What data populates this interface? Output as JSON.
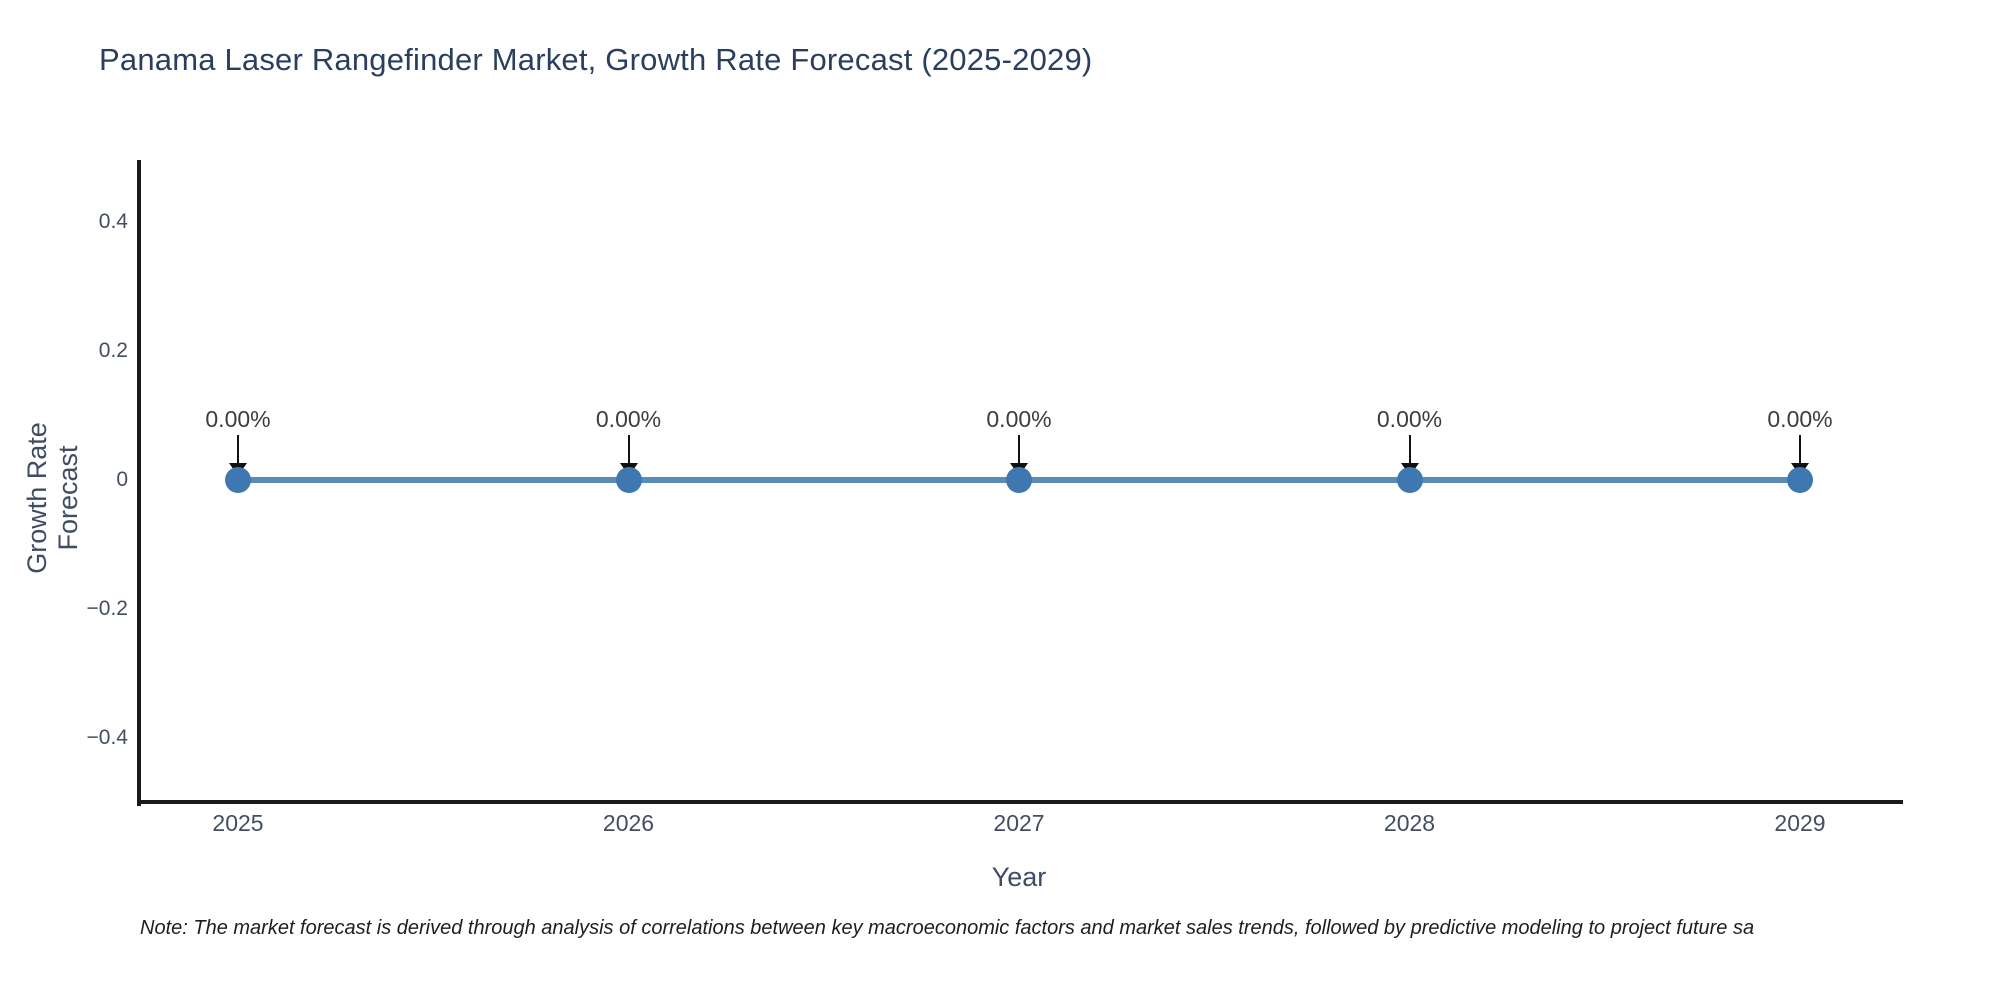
{
  "title": "Panama Laser Rangefinder Market, Growth Rate Forecast (2025-2029)",
  "axes": {
    "x_label": "Year",
    "y_label": "Growth Rate Forecast",
    "y_tick_labels": [
      "0.4",
      "0.2",
      "0",
      "−0.2",
      "−0.4"
    ],
    "x_tick_labels": [
      "2025",
      "2026",
      "2027",
      "2028",
      "2029"
    ]
  },
  "note": "Note: The market forecast is derived through analysis of correlations between key macroeconomic factors and market sales trends, followed by predictive modeling to project future sa",
  "colors": {
    "title": "#2a3f5f",
    "tick": "#434e5e",
    "axis_title": "#3f4c63",
    "axis_line": "#1a1a1a",
    "line": "#5a8cb8",
    "marker": "#3f78b0",
    "annotation": "#3d3d3d",
    "arrow": "#111111",
    "note": "#1e1e1e"
  },
  "chart_data": {
    "type": "line",
    "x": [
      2025,
      2026,
      2027,
      2028,
      2029
    ],
    "series": [
      {
        "name": "Growth Rate Forecast",
        "values": [
          0,
          0,
          0,
          0,
          0
        ]
      }
    ],
    "point_labels": [
      "0.00%",
      "0.00%",
      "0.00%",
      "0.00%",
      "0.00%"
    ],
    "title": "Panama Laser Rangefinder Market, Growth Rate Forecast (2025-2029)",
    "xlabel": "Year",
    "ylabel": "Growth Rate Forecast",
    "ylim": [
      -0.5,
      0.5
    ],
    "yticks": [
      0.4,
      0.2,
      0,
      -0.2,
      -0.4
    ],
    "grid": false,
    "legend": false,
    "annotation_arrows": "down-to-point"
  }
}
